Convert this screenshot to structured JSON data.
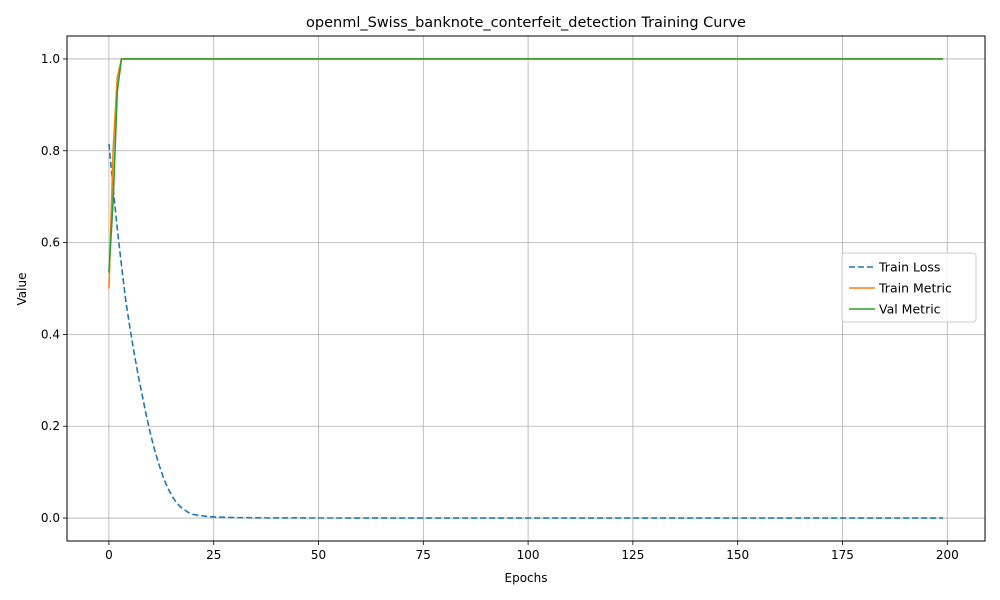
{
  "chart_data": {
    "type": "line",
    "title": "openml_Swiss_banknote_conterfeit_detection Training Curve",
    "xlabel": "Epochs",
    "ylabel": "Value",
    "xlim": [
      -10,
      209
    ],
    "ylim": [
      -0.05,
      1.05
    ],
    "xticks": [
      0,
      25,
      50,
      75,
      100,
      125,
      150,
      175,
      200
    ],
    "yticks": [
      0.0,
      0.2,
      0.4,
      0.6,
      0.8,
      1.0
    ],
    "xtick_labels": [
      "0",
      "25",
      "50",
      "75",
      "100",
      "125",
      "150",
      "175",
      "200"
    ],
    "ytick_labels": [
      "0.0",
      "0.2",
      "0.4",
      "0.6",
      "0.8",
      "1.0"
    ],
    "grid": true,
    "legend_position": "center-right",
    "series": [
      {
        "name": "Train Loss",
        "color": "#1f77b4",
        "style": "dashed",
        "x": [
          0,
          1,
          2,
          3,
          4,
          5,
          6,
          7,
          8,
          9,
          10,
          11,
          12,
          13,
          14,
          15,
          16,
          17,
          18,
          19,
          20,
          22,
          24,
          26,
          28,
          30,
          35,
          40,
          50,
          75,
          100,
          125,
          150,
          175,
          199
        ],
        "y": [
          0.815,
          0.72,
          0.63,
          0.55,
          0.475,
          0.415,
          0.36,
          0.31,
          0.265,
          0.22,
          0.18,
          0.145,
          0.115,
          0.088,
          0.066,
          0.049,
          0.035,
          0.025,
          0.018,
          0.012,
          0.008,
          0.005,
          0.003,
          0.002,
          0.0015,
          0.001,
          0.0005,
          0.0002,
          0.0001,
          0.0,
          0.0,
          0.0,
          0.0,
          0.0,
          0.0
        ]
      },
      {
        "name": "Train Metric",
        "color": "#ff7f0e",
        "style": "solid",
        "x": [
          0,
          1,
          2,
          3,
          4,
          10,
          50,
          100,
          150,
          199
        ],
        "y": [
          0.5,
          0.8,
          0.96,
          1.0,
          1.0,
          1.0,
          1.0,
          1.0,
          1.0,
          1.0
        ]
      },
      {
        "name": "Val Metric",
        "color": "#2ca02c",
        "style": "solid",
        "x": [
          0,
          1,
          2,
          3,
          4,
          10,
          50,
          100,
          150,
          199
        ],
        "y": [
          0.535,
          0.69,
          0.93,
          1.0,
          1.0,
          1.0,
          1.0,
          1.0,
          1.0,
          1.0
        ]
      }
    ]
  }
}
